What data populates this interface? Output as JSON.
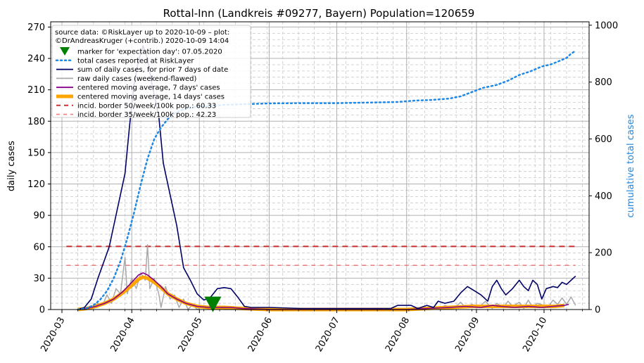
{
  "chart_data": {
    "type": "line",
    "title": "Rottal-Inn (Landkreis #09277, Bayern) Population=120659",
    "ylabel": "daily cases",
    "y2label": "cumulative total cases",
    "ylim": [
      0,
      275
    ],
    "y2lim": [
      0,
      1012
    ],
    "xlim": [
      "2020-02-25",
      "2020-10-21"
    ],
    "yticks": [
      0,
      30,
      60,
      90,
      120,
      150,
      180,
      210,
      240,
      270
    ],
    "y2ticks": [
      0,
      200,
      400,
      600,
      800,
      1000
    ],
    "xticks": [
      "2020-03",
      "2020-04",
      "2020-05",
      "2020-06",
      "2020-07",
      "2020-08",
      "2020-09",
      "2020-10"
    ],
    "grid": true,
    "legend_position": "top-left",
    "legend_header": [
      "source data: ©RiskLayer up to 2020-10-09 – plot:",
      "©DrAndreasKruger (+contrib.) 2020-10-09 14:04"
    ],
    "legend": [
      {
        "key": "marker",
        "label": "marker for 'expectation day': 07.05.2020",
        "color": "#008000"
      },
      {
        "key": "total",
        "label": "total cases reported at RiskLayer",
        "color": "#1e88e5"
      },
      {
        "key": "sum7",
        "label": "sum of daily cases, for prior 7 days of date",
        "color": "#000066"
      },
      {
        "key": "raw",
        "label": "raw daily cases (weekend-flawed)",
        "color": "#aaaaaa"
      },
      {
        "key": "ma7",
        "label": "centered moving average, 7 days' cases",
        "color": "#880088"
      },
      {
        "key": "ma14",
        "label": "centered moving average, 14 days' cases",
        "color": "#ffa500"
      },
      {
        "key": "b50",
        "label": "incid. border 50/week/100k pop.: 60.33",
        "color": "#cc3333"
      },
      {
        "key": "b35",
        "label": "incid. border 35/week/100k pop.: 42.23",
        "color": "#f08080"
      }
    ],
    "expectation_day": "2020-05-07",
    "incidence_border_50": 60.33,
    "incidence_border_35": 42.23,
    "series": [
      {
        "name": "sum of daily cases, for prior 7 days of date",
        "axis": "left",
        "points": [
          [
            "2020-03-08",
            0
          ],
          [
            "2020-03-11",
            2
          ],
          [
            "2020-03-14",
            10
          ],
          [
            "2020-03-17",
            30
          ],
          [
            "2020-03-20",
            48
          ],
          [
            "2020-03-22",
            60
          ],
          [
            "2020-03-24",
            80
          ],
          [
            "2020-03-27",
            110
          ],
          [
            "2020-03-29",
            130
          ],
          [
            "2020-03-31",
            175
          ],
          [
            "2020-04-02",
            215
          ],
          [
            "2020-04-04",
            238
          ],
          [
            "2020-04-06",
            252
          ],
          [
            "2020-04-08",
            240
          ],
          [
            "2020-04-10",
            215
          ],
          [
            "2020-04-13",
            185
          ],
          [
            "2020-04-15",
            140
          ],
          [
            "2020-04-18",
            110
          ],
          [
            "2020-04-21",
            80
          ],
          [
            "2020-04-24",
            40
          ],
          [
            "2020-04-27",
            28
          ],
          [
            "2020-04-30",
            15
          ],
          [
            "2020-05-03",
            9
          ],
          [
            "2020-05-06",
            12
          ],
          [
            "2020-05-09",
            20
          ],
          [
            "2020-05-12",
            21
          ],
          [
            "2020-05-15",
            20
          ],
          [
            "2020-05-18",
            12
          ],
          [
            "2020-05-21",
            3
          ],
          [
            "2020-05-24",
            2
          ],
          [
            "2020-05-28",
            2
          ],
          [
            "2020-06-01",
            2
          ],
          [
            "2020-06-15",
            1
          ],
          [
            "2020-07-01",
            1
          ],
          [
            "2020-07-15",
            1
          ],
          [
            "2020-07-25",
            1
          ],
          [
            "2020-07-28",
            4
          ],
          [
            "2020-08-03",
            4
          ],
          [
            "2020-08-06",
            1
          ],
          [
            "2020-08-10",
            4
          ],
          [
            "2020-08-13",
            2
          ],
          [
            "2020-08-15",
            8
          ],
          [
            "2020-08-18",
            6
          ],
          [
            "2020-08-22",
            8
          ],
          [
            "2020-08-25",
            16
          ],
          [
            "2020-08-28",
            22
          ],
          [
            "2020-08-31",
            18
          ],
          [
            "2020-09-03",
            14
          ],
          [
            "2020-09-06",
            8
          ],
          [
            "2020-09-08",
            22
          ],
          [
            "2020-09-10",
            28
          ],
          [
            "2020-09-12",
            20
          ],
          [
            "2020-09-14",
            14
          ],
          [
            "2020-09-17",
            20
          ],
          [
            "2020-09-20",
            28
          ],
          [
            "2020-09-22",
            22
          ],
          [
            "2020-09-24",
            18
          ],
          [
            "2020-09-26",
            28
          ],
          [
            "2020-09-28",
            24
          ],
          [
            "2020-09-30",
            10
          ],
          [
            "2020-10-02",
            20
          ],
          [
            "2020-10-05",
            22
          ],
          [
            "2020-10-07",
            21
          ],
          [
            "2020-10-09",
            26
          ],
          [
            "2020-10-11",
            24
          ],
          [
            "2020-10-13",
            28
          ],
          [
            "2020-10-15",
            32
          ]
        ]
      },
      {
        "name": "raw daily cases (weekend-flawed)",
        "axis": "left",
        "points": [
          [
            "2020-03-08",
            0
          ],
          [
            "2020-03-12",
            1
          ],
          [
            "2020-03-15",
            3
          ],
          [
            "2020-03-17",
            6
          ],
          [
            "2020-03-19",
            4
          ],
          [
            "2020-03-21",
            14
          ],
          [
            "2020-03-23",
            6
          ],
          [
            "2020-03-25",
            20
          ],
          [
            "2020-03-27",
            15
          ],
          [
            "2020-03-29",
            50
          ],
          [
            "2020-03-30",
            15
          ],
          [
            "2020-04-01",
            30
          ],
          [
            "2020-04-03",
            20
          ],
          [
            "2020-04-05",
            35
          ],
          [
            "2020-04-07",
            28
          ],
          [
            "2020-04-08",
            62
          ],
          [
            "2020-04-09",
            20
          ],
          [
            "2020-04-11",
            30
          ],
          [
            "2020-04-13",
            15
          ],
          [
            "2020-04-14",
            2
          ],
          [
            "2020-04-16",
            22
          ],
          [
            "2020-04-18",
            10
          ],
          [
            "2020-04-20",
            14
          ],
          [
            "2020-04-22",
            2
          ],
          [
            "2020-04-24",
            10
          ],
          [
            "2020-04-26",
            0
          ],
          [
            "2020-04-28",
            5
          ],
          [
            "2020-04-30",
            0
          ],
          [
            "2020-05-03",
            3
          ],
          [
            "2020-05-07",
            2
          ],
          [
            "2020-05-12",
            0
          ],
          [
            "2020-05-20",
            0
          ],
          [
            "2020-06-01",
            0
          ],
          [
            "2020-07-01",
            0
          ],
          [
            "2020-08-01",
            0
          ],
          [
            "2020-08-10",
            2
          ],
          [
            "2020-08-15",
            0
          ],
          [
            "2020-08-18",
            4
          ],
          [
            "2020-08-22",
            1
          ],
          [
            "2020-08-25",
            7
          ],
          [
            "2020-08-27",
            2
          ],
          [
            "2020-08-30",
            5
          ],
          [
            "2020-09-02",
            2
          ],
          [
            "2020-09-05",
            8
          ],
          [
            "2020-09-08",
            1
          ],
          [
            "2020-09-10",
            6
          ],
          [
            "2020-09-13",
            2
          ],
          [
            "2020-09-15",
            8
          ],
          [
            "2020-09-17",
            3
          ],
          [
            "2020-09-20",
            7
          ],
          [
            "2020-09-22",
            1
          ],
          [
            "2020-09-24",
            9
          ],
          [
            "2020-09-26",
            2
          ],
          [
            "2020-09-28",
            6
          ],
          [
            "2020-10-01",
            4
          ],
          [
            "2020-10-03",
            3
          ],
          [
            "2020-10-05",
            9
          ],
          [
            "2020-10-07",
            5
          ],
          [
            "2020-10-09",
            11
          ],
          [
            "2020-10-11",
            5
          ],
          [
            "2020-10-13",
            12
          ],
          [
            "2020-10-15",
            4
          ]
        ]
      },
      {
        "name": "centered moving average, 7 days' cases",
        "axis": "left",
        "points": [
          [
            "2020-03-08",
            0
          ],
          [
            "2020-03-12",
            1
          ],
          [
            "2020-03-16",
            3
          ],
          [
            "2020-03-20",
            6
          ],
          [
            "2020-03-24",
            10
          ],
          [
            "2020-03-28",
            17
          ],
          [
            "2020-04-01",
            26
          ],
          [
            "2020-04-04",
            33
          ],
          [
            "2020-04-06",
            35
          ],
          [
            "2020-04-08",
            33
          ],
          [
            "2020-04-11",
            28
          ],
          [
            "2020-04-14",
            22
          ],
          [
            "2020-04-17",
            15
          ],
          [
            "2020-04-21",
            10
          ],
          [
            "2020-04-25",
            6
          ],
          [
            "2020-04-30",
            3
          ],
          [
            "2020-05-05",
            2
          ],
          [
            "2020-05-10",
            2
          ],
          [
            "2020-05-15",
            2
          ],
          [
            "2020-05-20",
            1
          ],
          [
            "2020-06-01",
            0
          ],
          [
            "2020-07-01",
            0
          ],
          [
            "2020-08-01",
            0
          ],
          [
            "2020-08-10",
            1
          ],
          [
            "2020-08-20",
            2
          ],
          [
            "2020-08-27",
            3
          ],
          [
            "2020-09-03",
            2
          ],
          [
            "2020-09-08",
            4
          ],
          [
            "2020-09-12",
            3
          ],
          [
            "2020-09-18",
            2
          ],
          [
            "2020-09-24",
            3
          ],
          [
            "2020-09-30",
            2
          ],
          [
            "2020-10-05",
            3
          ],
          [
            "2020-10-10",
            4
          ],
          [
            "2020-10-12",
            5
          ]
        ]
      },
      {
        "name": "centered moving average, 14 days' cases",
        "axis": "left",
        "points": [
          [
            "2020-03-08",
            0
          ],
          [
            "2020-03-12",
            1
          ],
          [
            "2020-03-16",
            3
          ],
          [
            "2020-03-20",
            6
          ],
          [
            "2020-03-24",
            10
          ],
          [
            "2020-03-28",
            16
          ],
          [
            "2020-04-01",
            23
          ],
          [
            "2020-04-04",
            29
          ],
          [
            "2020-04-06",
            31
          ],
          [
            "2020-04-08",
            30
          ],
          [
            "2020-04-11",
            26
          ],
          [
            "2020-04-14",
            21
          ],
          [
            "2020-04-17",
            15
          ],
          [
            "2020-04-21",
            10
          ],
          [
            "2020-04-25",
            6
          ],
          [
            "2020-04-30",
            3
          ],
          [
            "2020-05-05",
            2
          ],
          [
            "2020-05-12",
            2
          ],
          [
            "2020-05-20",
            1
          ],
          [
            "2020-06-01",
            0
          ],
          [
            "2020-07-01",
            0
          ],
          [
            "2020-08-01",
            0
          ],
          [
            "2020-08-10",
            1
          ],
          [
            "2020-08-20",
            2
          ],
          [
            "2020-08-30",
            3
          ],
          [
            "2020-09-10",
            3
          ],
          [
            "2020-09-20",
            3
          ],
          [
            "2020-09-30",
            3
          ],
          [
            "2020-10-06",
            3
          ],
          [
            "2020-10-10",
            4
          ]
        ]
      },
      {
        "name": "total cases reported at RiskLayer",
        "axis": "right",
        "points": [
          [
            "2020-03-08",
            0
          ],
          [
            "2020-03-12",
            5
          ],
          [
            "2020-03-15",
            15
          ],
          [
            "2020-03-18",
            35
          ],
          [
            "2020-03-21",
            65
          ],
          [
            "2020-03-24",
            110
          ],
          [
            "2020-03-27",
            170
          ],
          [
            "2020-03-30",
            250
          ],
          [
            "2020-04-02",
            340
          ],
          [
            "2020-04-05",
            440
          ],
          [
            "2020-04-08",
            530
          ],
          [
            "2020-04-11",
            600
          ],
          [
            "2020-04-14",
            640
          ],
          [
            "2020-04-17",
            670
          ],
          [
            "2020-04-20",
            690
          ],
          [
            "2020-04-24",
            705
          ],
          [
            "2020-04-28",
            712
          ],
          [
            "2020-05-05",
            715
          ],
          [
            "2020-05-12",
            720
          ],
          [
            "2020-05-20",
            722
          ],
          [
            "2020-06-01",
            725
          ],
          [
            "2020-06-15",
            726
          ],
          [
            "2020-07-01",
            726
          ],
          [
            "2020-07-15",
            728
          ],
          [
            "2020-07-28",
            730
          ],
          [
            "2020-08-05",
            735
          ],
          [
            "2020-08-12",
            737
          ],
          [
            "2020-08-20",
            742
          ],
          [
            "2020-08-25",
            750
          ],
          [
            "2020-08-30",
            765
          ],
          [
            "2020-09-04",
            780
          ],
          [
            "2020-09-10",
            790
          ],
          [
            "2020-09-15",
            805
          ],
          [
            "2020-09-20",
            825
          ],
          [
            "2020-09-25",
            838
          ],
          [
            "2020-09-30",
            855
          ],
          [
            "2020-10-04",
            862
          ],
          [
            "2020-10-08",
            875
          ],
          [
            "2020-10-11",
            885
          ],
          [
            "2020-10-13",
            900
          ],
          [
            "2020-10-15",
            910
          ]
        ]
      }
    ]
  }
}
